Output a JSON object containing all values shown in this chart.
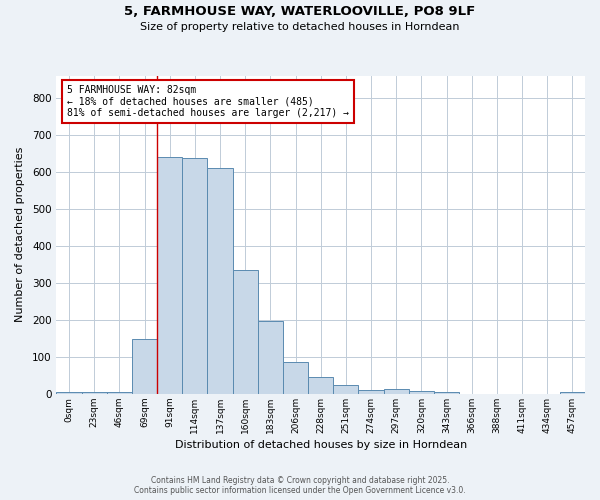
{
  "title_line1": "5, FARMHOUSE WAY, WATERLOOVILLE, PO8 9LF",
  "title_line2": "Size of property relative to detached houses in Horndean",
  "xlabel": "Distribution of detached houses by size in Horndean",
  "ylabel": "Number of detached properties",
  "bin_labels": [
    "0sqm",
    "23sqm",
    "46sqm",
    "69sqm",
    "91sqm",
    "114sqm",
    "137sqm",
    "160sqm",
    "183sqm",
    "206sqm",
    "228sqm",
    "251sqm",
    "274sqm",
    "297sqm",
    "320sqm",
    "343sqm",
    "366sqm",
    "388sqm",
    "411sqm",
    "434sqm",
    "457sqm"
  ],
  "bar_heights": [
    5,
    5,
    5,
    148,
    640,
    638,
    610,
    335,
    198,
    85,
    45,
    25,
    10,
    12,
    8,
    5,
    0,
    0,
    0,
    0,
    4
  ],
  "bar_color": "#c8d8e8",
  "bar_edge_color": "#5a8ab0",
  "property_line_x": 4.0,
  "annotation_text": "5 FARMHOUSE WAY: 82sqm\n← 18% of detached houses are smaller (485)\n81% of semi-detached houses are larger (2,217) →",
  "annotation_box_color": "#ffffff",
  "annotation_box_edge_color": "#cc0000",
  "annotation_text_color": "#000000",
  "line_color": "#cc0000",
  "ylim": [
    0,
    860
  ],
  "yticks": [
    0,
    100,
    200,
    300,
    400,
    500,
    600,
    700,
    800
  ],
  "footer_line1": "Contains HM Land Registry data © Crown copyright and database right 2025.",
  "footer_line2": "Contains public sector information licensed under the Open Government Licence v3.0.",
  "background_color": "#edf2f7",
  "plot_background_color": "#ffffff",
  "grid_color": "#c0ccd8"
}
